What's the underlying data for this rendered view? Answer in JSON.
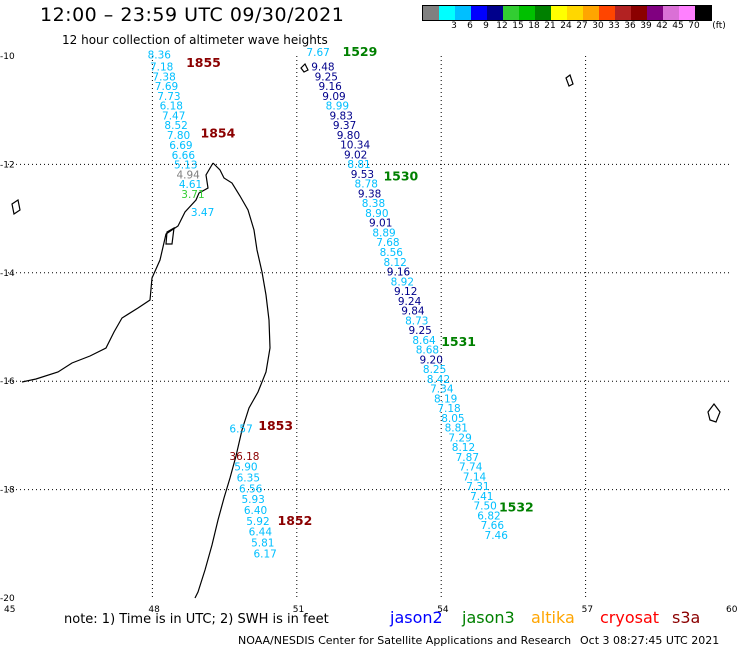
{
  "header": {
    "title": "12:00 – 23:59 UTC 09/30/2021",
    "subtitle": "12 hour collection of altimeter wave heights"
  },
  "colorbar": {
    "unit": "(ft)",
    "swatches": [
      {
        "color": "#808080",
        "label": ""
      },
      {
        "color": "#00ffff",
        "label": "3"
      },
      {
        "color": "#00bfff",
        "label": "6"
      },
      {
        "color": "#0000ff",
        "label": "9"
      },
      {
        "color": "#00008b",
        "label": "12"
      },
      {
        "color": "#32cd32",
        "label": "15"
      },
      {
        "color": "#00c000",
        "label": "18"
      },
      {
        "color": "#008000",
        "label": "21"
      },
      {
        "color": "#ffff00",
        "label": "24"
      },
      {
        "color": "#ffd700",
        "label": "27"
      },
      {
        "color": "#ffa500",
        "label": "30"
      },
      {
        "color": "#ff4500",
        "label": "33"
      },
      {
        "color": "#b22222",
        "label": "36"
      },
      {
        "color": "#8b0000",
        "label": "39"
      },
      {
        "color": "#800080",
        "label": "42"
      },
      {
        "color": "#da70d6",
        "label": "45"
      },
      {
        "color": "#ff80ff",
        "label": "70"
      },
      {
        "color": "#000000",
        "label": ""
      }
    ]
  },
  "map": {
    "lat_ticks": [
      "-10",
      "-12",
      "-14",
      "-16",
      "-18",
      "-20"
    ],
    "lon_ticks": [
      "45",
      "48",
      "51",
      "54",
      "57",
      "60"
    ],
    "lat_range": [
      -20,
      -10
    ],
    "lon_range": [
      45,
      60
    ],
    "colors": {
      "low": "#00bfff",
      "mid": "#0000ff",
      "dark": "#00008b",
      "j3": "#008000",
      "light": "#00bfff",
      "cryo": "#8b0000"
    },
    "time_labels": [
      {
        "text": "1529",
        "lon": 51.95,
        "lat": -10.0,
        "color": "#008000"
      },
      {
        "text": "1530",
        "lon": 52.8,
        "lat": -12.3,
        "color": "#008000"
      },
      {
        "text": "1531",
        "lon": 54.0,
        "lat": -15.35,
        "color": "#008000"
      },
      {
        "text": "1532",
        "lon": 55.2,
        "lat": -18.4,
        "color": "#008000"
      },
      {
        "text": "1855",
        "lon": 48.7,
        "lat": -10.2,
        "color": "#8b0000"
      },
      {
        "text": "1854",
        "lon": 49.0,
        "lat": -11.5,
        "color": "#8b0000"
      },
      {
        "text": "1853",
        "lon": 50.2,
        "lat": -16.9,
        "color": "#8b0000"
      },
      {
        "text": "1852",
        "lon": 50.6,
        "lat": -18.65,
        "color": "#8b0000"
      }
    ],
    "jason3_track": [
      {
        "v": "7.67",
        "lon": 51.2,
        "lat": -10.0,
        "c": "#00bfff"
      },
      {
        "v": "9.48",
        "lon": 51.3,
        "lat": -10.27,
        "c": "#00008b"
      },
      {
        "v": "9.25",
        "lon": 51.37,
        "lat": -10.45,
        "c": "#00008b"
      },
      {
        "v": "9.16",
        "lon": 51.45,
        "lat": -10.63,
        "c": "#00008b"
      },
      {
        "v": "9.09",
        "lon": 51.53,
        "lat": -10.81,
        "c": "#00008b"
      },
      {
        "v": "8.99",
        "lon": 51.6,
        "lat": -10.99,
        "c": "#00bfff"
      },
      {
        "v": "9.83",
        "lon": 51.68,
        "lat": -11.17,
        "c": "#00008b"
      },
      {
        "v": "9.37",
        "lon": 51.75,
        "lat": -11.35,
        "c": "#00008b"
      },
      {
        "v": "9.80",
        "lon": 51.83,
        "lat": -11.53,
        "c": "#00008b"
      },
      {
        "v": "10.34",
        "lon": 51.9,
        "lat": -11.71,
        "c": "#00008b"
      },
      {
        "v": "9.02",
        "lon": 51.98,
        "lat": -11.89,
        "c": "#00008b"
      },
      {
        "v": "8.81",
        "lon": 52.05,
        "lat": -12.07,
        "c": "#00bfff"
      },
      {
        "v": "9.53",
        "lon": 52.12,
        "lat": -12.25,
        "c": "#00008b"
      },
      {
        "v": "8.78",
        "lon": 52.2,
        "lat": -12.43,
        "c": "#00bfff"
      },
      {
        "v": "9.38",
        "lon": 52.27,
        "lat": -12.61,
        "c": "#00008b"
      },
      {
        "v": "8.38",
        "lon": 52.35,
        "lat": -12.79,
        "c": "#00bfff"
      },
      {
        "v": "8.90",
        "lon": 52.42,
        "lat": -12.97,
        "c": "#00bfff"
      },
      {
        "v": "9.01",
        "lon": 52.5,
        "lat": -13.15,
        "c": "#00008b"
      },
      {
        "v": "8.89",
        "lon": 52.57,
        "lat": -13.33,
        "c": "#00bfff"
      },
      {
        "v": "7.68",
        "lon": 52.65,
        "lat": -13.51,
        "c": "#00bfff"
      },
      {
        "v": "8.56",
        "lon": 52.72,
        "lat": -13.69,
        "c": "#00bfff"
      },
      {
        "v": "8.12",
        "lon": 52.8,
        "lat": -13.87,
        "c": "#00bfff"
      },
      {
        "v": "9.16",
        "lon": 52.87,
        "lat": -14.05,
        "c": "#00008b"
      },
      {
        "v": "8.92",
        "lon": 52.95,
        "lat": -14.23,
        "c": "#00bfff"
      },
      {
        "v": "9.12",
        "lon": 53.02,
        "lat": -14.41,
        "c": "#00008b"
      },
      {
        "v": "9.24",
        "lon": 53.1,
        "lat": -14.59,
        "c": "#00008b"
      },
      {
        "v": "9.84",
        "lon": 53.17,
        "lat": -14.77,
        "c": "#00008b"
      },
      {
        "v": "8.73",
        "lon": 53.25,
        "lat": -14.95,
        "c": "#00bfff"
      },
      {
        "v": "9.25",
        "lon": 53.32,
        "lat": -15.13,
        "c": "#00008b"
      },
      {
        "v": "8.64",
        "lon": 53.4,
        "lat": -15.31,
        "c": "#00bfff"
      },
      {
        "v": "8.68",
        "lon": 53.47,
        "lat": -15.49,
        "c": "#00bfff"
      },
      {
        "v": "9.20",
        "lon": 53.55,
        "lat": -15.67,
        "c": "#00008b"
      },
      {
        "v": "8.25",
        "lon": 53.62,
        "lat": -15.85,
        "c": "#00bfff"
      },
      {
        "v": "8.42",
        "lon": 53.7,
        "lat": -16.03,
        "c": "#00bfff"
      },
      {
        "v": "7.34",
        "lon": 53.77,
        "lat": -16.21,
        "c": "#00bfff"
      },
      {
        "v": "8.19",
        "lon": 53.85,
        "lat": -16.39,
        "c": "#00bfff"
      },
      {
        "v": "7.18",
        "lon": 53.92,
        "lat": -16.57,
        "c": "#00bfff"
      },
      {
        "v": "8.05",
        "lon": 54.0,
        "lat": -16.75,
        "c": "#00bfff"
      },
      {
        "v": "8.81",
        "lon": 54.07,
        "lat": -16.93,
        "c": "#00bfff"
      },
      {
        "v": "7.29",
        "lon": 54.15,
        "lat": -17.11,
        "c": "#00bfff"
      },
      {
        "v": "8.12",
        "lon": 54.22,
        "lat": -17.29,
        "c": "#00bfff"
      },
      {
        "v": "7.87",
        "lon": 54.3,
        "lat": -17.47,
        "c": "#00bfff"
      },
      {
        "v": "7.74",
        "lon": 54.37,
        "lat": -17.65,
        "c": "#00bfff"
      },
      {
        "v": "7.14",
        "lon": 54.45,
        "lat": -17.83,
        "c": "#00bfff"
      },
      {
        "v": "7.31",
        "lon": 54.52,
        "lat": -18.01,
        "c": "#00bfff"
      },
      {
        "v": "7.41",
        "lon": 54.6,
        "lat": -18.19,
        "c": "#00bfff"
      },
      {
        "v": "7.50",
        "lon": 54.67,
        "lat": -18.37,
        "c": "#00bfff"
      },
      {
        "v": "6.82",
        "lon": 54.75,
        "lat": -18.55,
        "c": "#00bfff"
      },
      {
        "v": "7.66",
        "lon": 54.82,
        "lat": -18.73,
        "c": "#00bfff"
      },
      {
        "v": "7.46",
        "lon": 54.9,
        "lat": -18.91,
        "c": "#00bfff"
      }
    ],
    "cryosat_track_north": [
      {
        "v": "8.36",
        "lon": 47.9,
        "lat": -10.05,
        "c": "#00bfff"
      },
      {
        "v": "7.18",
        "lon": 47.95,
        "lat": -10.27,
        "c": "#00bfff"
      },
      {
        "v": "7.38",
        "lon": 48.0,
        "lat": -10.45,
        "c": "#00bfff"
      },
      {
        "v": "7.69",
        "lon": 48.05,
        "lat": -10.63,
        "c": "#00bfff"
      },
      {
        "v": "7.73",
        "lon": 48.1,
        "lat": -10.81,
        "c": "#00bfff"
      },
      {
        "v": "6.18",
        "lon": 48.15,
        "lat": -10.99,
        "c": "#00bfff"
      },
      {
        "v": "7.47",
        "lon": 48.2,
        "lat": -11.17,
        "c": "#00bfff"
      },
      {
        "v": "8.52",
        "lon": 48.25,
        "lat": -11.35,
        "c": "#00bfff"
      },
      {
        "v": "7.80",
        "lon": 48.3,
        "lat": -11.53,
        "c": "#00bfff"
      },
      {
        "v": "6.69",
        "lon": 48.35,
        "lat": -11.72,
        "c": "#00bfff"
      },
      {
        "v": "6.66",
        "lon": 48.4,
        "lat": -11.9,
        "c": "#00bfff"
      },
      {
        "v": "5.13",
        "lon": 48.45,
        "lat": -12.08,
        "c": "#00bfff"
      },
      {
        "v": "4.94",
        "lon": 48.5,
        "lat": -12.26,
        "c": "#808080"
      },
      {
        "v": "4.61",
        "lon": 48.55,
        "lat": -12.44,
        "c": "#00bfff"
      },
      {
        "v": "3.71",
        "lon": 48.6,
        "lat": -12.62,
        "c": "#32cd32"
      },
      {
        "v": "3.47",
        "lon": 48.8,
        "lat": -12.95,
        "c": "#00bfff"
      }
    ],
    "cryosat_track_south": [
      {
        "v": "6.57",
        "lon": 49.6,
        "lat": -16.95,
        "c": "#00bfff"
      },
      {
        "v": "36.18",
        "lon": 49.6,
        "lat": -17.45,
        "c": "#8b0000"
      },
      {
        "v": "5.90",
        "lon": 49.7,
        "lat": -17.65,
        "c": "#00bfff"
      },
      {
        "v": "6.35",
        "lon": 49.75,
        "lat": -17.85,
        "c": "#00bfff"
      },
      {
        "v": "6.56",
        "lon": 49.8,
        "lat": -18.05,
        "c": "#00bfff"
      },
      {
        "v": "5.93",
        "lon": 49.85,
        "lat": -18.25,
        "c": "#00bfff"
      },
      {
        "v": "6.40",
        "lon": 49.9,
        "lat": -18.45,
        "c": "#00bfff"
      },
      {
        "v": "5.92",
        "lon": 49.95,
        "lat": -18.65,
        "c": "#00bfff"
      },
      {
        "v": "6.44",
        "lon": 50.0,
        "lat": -18.85,
        "c": "#00bfff"
      },
      {
        "v": "5.81",
        "lon": 50.05,
        "lat": -19.05,
        "c": "#00bfff"
      },
      {
        "v": "6.17",
        "lon": 50.1,
        "lat": -19.25,
        "c": "#00bfff"
      }
    ]
  },
  "footer": {
    "note": "note:  1) Time is in UTC;  2) SWH is in feet",
    "satellites": [
      {
        "name": "jason2",
        "color": "#0000ff"
      },
      {
        "name": "jason3",
        "color": "#008000"
      },
      {
        "name": "altika",
        "color": "#ffa500"
      },
      {
        "name": "cryosat",
        "color": "#ff0000"
      },
      {
        "name": "s3a",
        "color": "#8b0000"
      }
    ],
    "credit": "NOAA/NESDIS Center for Satellite Applications and Research",
    "timestamp": "Oct  3 08:27:45 UTC 2021"
  }
}
